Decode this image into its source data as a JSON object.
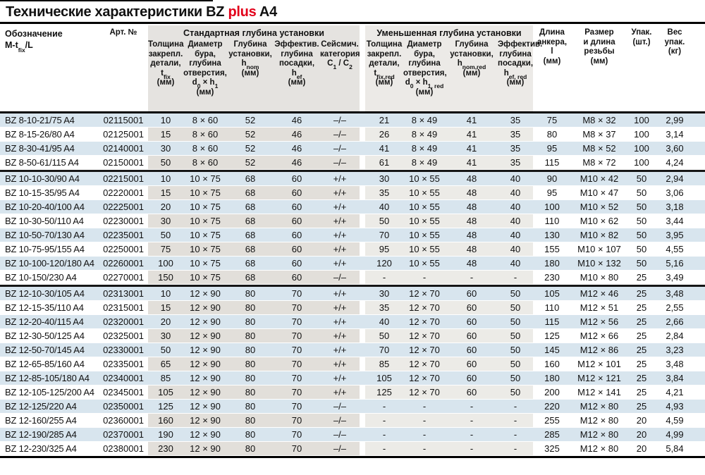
{
  "title": {
    "pre": "Технические характеристики BZ ",
    "highlight": "plus",
    "post": " A4"
  },
  "colors": {
    "accent_red": "#e2001a",
    "row_blue": "#d8e5ee",
    "row_gray_standard": "#e2dfda",
    "row_gray_reduced": "#ecebe7",
    "header_gray_standard": "#e5e3e0",
    "header_gray_reduced": "#eceae7"
  },
  "columns": {
    "designation": "Обозначение\nM-t~fix~/L",
    "art": "Арт. №",
    "std_group": "Стандартная глубина установки",
    "red_group": "Уменьшенная глубина установки",
    "std": [
      "Толщина\nзакрепл.\nдетали,\nt~fix~\n(мм)",
      "Диаметр\nбура,\nглубина\nотверстия,\nd~0~ × h~1~\n(мм)",
      "Глубина\nустановки,\nh~nom~\n(мм)",
      "Эффектив.\nглубина\nпосадки,\nh~ef~\n(мм)"
    ],
    "seismic": "Сейсмич.\nкатегория\nC~1~ / C~2~",
    "red": [
      "Толщина\nзакрепл.\nдетали,\nt~fix,red~\n(мм)",
      "Диаметр\nбура,\nглубина\nотверстия,\nd~0~ × h~1, red~\n(мм)",
      "Глубина\nустановки,\nh~nom,red~\n(мм)",
      "Эффектив.\nглубина\nпосадки,\nh~ef, red~\n(мм)"
    ],
    "length": "Длина\nанкера,\nl\n(мм)",
    "thread": "Размер\nи длина\nрезьбы\n(мм)",
    "pack": "Упак.\n(шт.)",
    "weight": "Вес\nупак.\n(кг)"
  },
  "groups": [
    {
      "rows": [
        [
          "BZ 8-10-21/75 A4",
          "02115001",
          "10",
          "8 × 60",
          "52",
          "46",
          "–/–",
          "21",
          "8 × 49",
          "41",
          "35",
          "75",
          "M8 × 32",
          "100",
          "2,99"
        ],
        [
          "BZ 8-15-26/80 A4",
          "02125001",
          "15",
          "8 × 60",
          "52",
          "46",
          "–/–",
          "26",
          "8 × 49",
          "41",
          "35",
          "80",
          "M8 × 37",
          "100",
          "3,14"
        ],
        [
          "BZ 8-30-41/95 A4",
          "02140001",
          "30",
          "8 × 60",
          "52",
          "46",
          "–/–",
          "41",
          "8 × 49",
          "41",
          "35",
          "95",
          "M8 × 52",
          "100",
          "3,60"
        ],
        [
          "BZ 8-50-61/115 A4",
          "02150001",
          "50",
          "8 × 60",
          "52",
          "46",
          "–/–",
          "61",
          "8 × 49",
          "41",
          "35",
          "115",
          "M8 × 72",
          "100",
          "4,24"
        ]
      ]
    },
    {
      "rows": [
        [
          "BZ 10-10-30/90 A4",
          "02215001",
          "10",
          "10 × 75",
          "68",
          "60",
          "+/+",
          "30",
          "10 × 55",
          "48",
          "40",
          "90",
          "M10 × 42",
          "50",
          "2,94"
        ],
        [
          "BZ 10-15-35/95 A4",
          "02220001",
          "15",
          "10 × 75",
          "68",
          "60",
          "+/+",
          "35",
          "10 × 55",
          "48",
          "40",
          "95",
          "M10 × 47",
          "50",
          "3,06"
        ],
        [
          "BZ 10-20-40/100 A4",
          "02225001",
          "20",
          "10 × 75",
          "68",
          "60",
          "+/+",
          "40",
          "10 × 55",
          "48",
          "40",
          "100",
          "M10 × 52",
          "50",
          "3,18"
        ],
        [
          "BZ 10-30-50/110 A4",
          "02230001",
          "30",
          "10 × 75",
          "68",
          "60",
          "+/+",
          "50",
          "10 × 55",
          "48",
          "40",
          "110",
          "M10 × 62",
          "50",
          "3,44"
        ],
        [
          "BZ 10-50-70/130 A4",
          "02235001",
          "50",
          "10 × 75",
          "68",
          "60",
          "+/+",
          "70",
          "10 × 55",
          "48",
          "40",
          "130",
          "M10 × 82",
          "50",
          "3,95"
        ],
        [
          "BZ 10-75-95/155 A4",
          "02250001",
          "75",
          "10 × 75",
          "68",
          "60",
          "+/+",
          "95",
          "10 × 55",
          "48",
          "40",
          "155",
          "M10 × 107",
          "50",
          "4,55"
        ],
        [
          "BZ 10-100-120/180 A4",
          "02260001",
          "100",
          "10 × 75",
          "68",
          "60",
          "+/+",
          "120",
          "10 × 55",
          "48",
          "40",
          "180",
          "M10 × 132",
          "50",
          "5,16"
        ],
        [
          "BZ 10-150/230 A4",
          "02270001",
          "150",
          "10 × 75",
          "68",
          "60",
          "–/–",
          "-",
          "-",
          "-",
          "-",
          "230",
          "M10 × 80",
          "25",
          "3,49"
        ]
      ]
    },
    {
      "rows": [
        [
          "BZ 12-10-30/105 A4",
          "02313001",
          "10",
          "12 × 90",
          "80",
          "70",
          "+/+",
          "30",
          "12 × 70",
          "60",
          "50",
          "105",
          "M12 × 46",
          "25",
          "3,48"
        ],
        [
          "BZ 12-15-35/110 A4",
          "02315001",
          "15",
          "12 × 90",
          "80",
          "70",
          "+/+",
          "35",
          "12 × 70",
          "60",
          "50",
          "110",
          "M12 × 51",
          "25",
          "2,55"
        ],
        [
          "BZ 12-20-40/115 A4",
          "02320001",
          "20",
          "12 × 90",
          "80",
          "70",
          "+/+",
          "40",
          "12 × 70",
          "60",
          "50",
          "115",
          "M12 × 56",
          "25",
          "2,66"
        ],
        [
          "BZ 12-30-50/125 A4",
          "02325001",
          "30",
          "12 × 90",
          "80",
          "70",
          "+/+",
          "50",
          "12 × 70",
          "60",
          "50",
          "125",
          "M12 × 66",
          "25",
          "2,84"
        ],
        [
          "BZ 12-50-70/145 A4",
          "02330001",
          "50",
          "12 × 90",
          "80",
          "70",
          "+/+",
          "70",
          "12 × 70",
          "60",
          "50",
          "145",
          "M12 × 86",
          "25",
          "3,23"
        ],
        [
          "BZ 12-65-85/160 A4",
          "02335001",
          "65",
          "12 × 90",
          "80",
          "70",
          "+/+",
          "85",
          "12 × 70",
          "60",
          "50",
          "160",
          "M12 × 101",
          "25",
          "3,48"
        ],
        [
          "BZ 12-85-105/180 A4",
          "02340001",
          "85",
          "12 × 90",
          "80",
          "70",
          "+/+",
          "105",
          "12 × 70",
          "60",
          "50",
          "180",
          "M12 × 121",
          "25",
          "3,84"
        ],
        [
          "BZ 12-105-125/200 A4",
          "02345001",
          "105",
          "12 × 90",
          "80",
          "70",
          "+/+",
          "125",
          "12 × 70",
          "60",
          "50",
          "200",
          "M12 × 141",
          "25",
          "4,21"
        ],
        [
          "BZ 12-125/220 A4",
          "02350001",
          "125",
          "12 × 90",
          "80",
          "70",
          "–/–",
          "-",
          "-",
          "-",
          "-",
          "220",
          "M12 × 80",
          "25",
          "4,93"
        ],
        [
          "BZ 12-160/255 A4",
          "02360001",
          "160",
          "12 × 90",
          "80",
          "70",
          "–/–",
          "-",
          "-",
          "-",
          "-",
          "255",
          "M12 × 80",
          "20",
          "4,59"
        ],
        [
          "BZ 12-190/285 A4",
          "02370001",
          "190",
          "12 × 90",
          "80",
          "70",
          "–/–",
          "-",
          "-",
          "-",
          "-",
          "285",
          "M12 × 80",
          "20",
          "4,99"
        ],
        [
          "BZ 12-230/325 A4",
          "02380001",
          "230",
          "12 × 90",
          "80",
          "70",
          "–/–",
          "-",
          "-",
          "-",
          "-",
          "325",
          "M12 × 80",
          "20",
          "5,84"
        ]
      ]
    }
  ]
}
